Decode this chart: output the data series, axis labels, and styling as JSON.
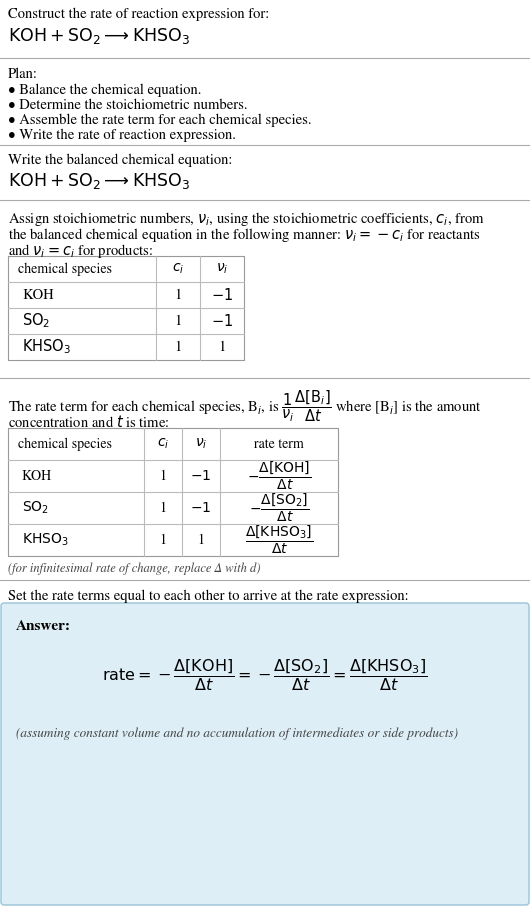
{
  "bg_color": "#ffffff",
  "text_color": "#000000",
  "answer_bg": "#ddeef6",
  "answer_border": "#99c4d8",
  "title_line1": "Construct the rate of reaction expression for:",
  "plan_header": "Plan:",
  "plan_items": [
    "• Balance the chemical equation.",
    "• Determine the stoichiometric numbers.",
    "• Assemble the rate term for each chemical species.",
    "• Write the rate of reaction expression."
  ],
  "balanced_header": "Write the balanced chemical equation:",
  "set_rate_text": "Set the rate terms equal to each other to arrive at the rate expression:",
  "answer_label": "Answer:",
  "footnote": "(assuming constant volume and no accumulation of intermediates or side products)",
  "infinitesimal_note": "(for infinitesimal rate of change, replace Δ with d)",
  "sep_color": "#aaaaaa",
  "table_border": "#999999",
  "table_line": "#bbbbbb"
}
